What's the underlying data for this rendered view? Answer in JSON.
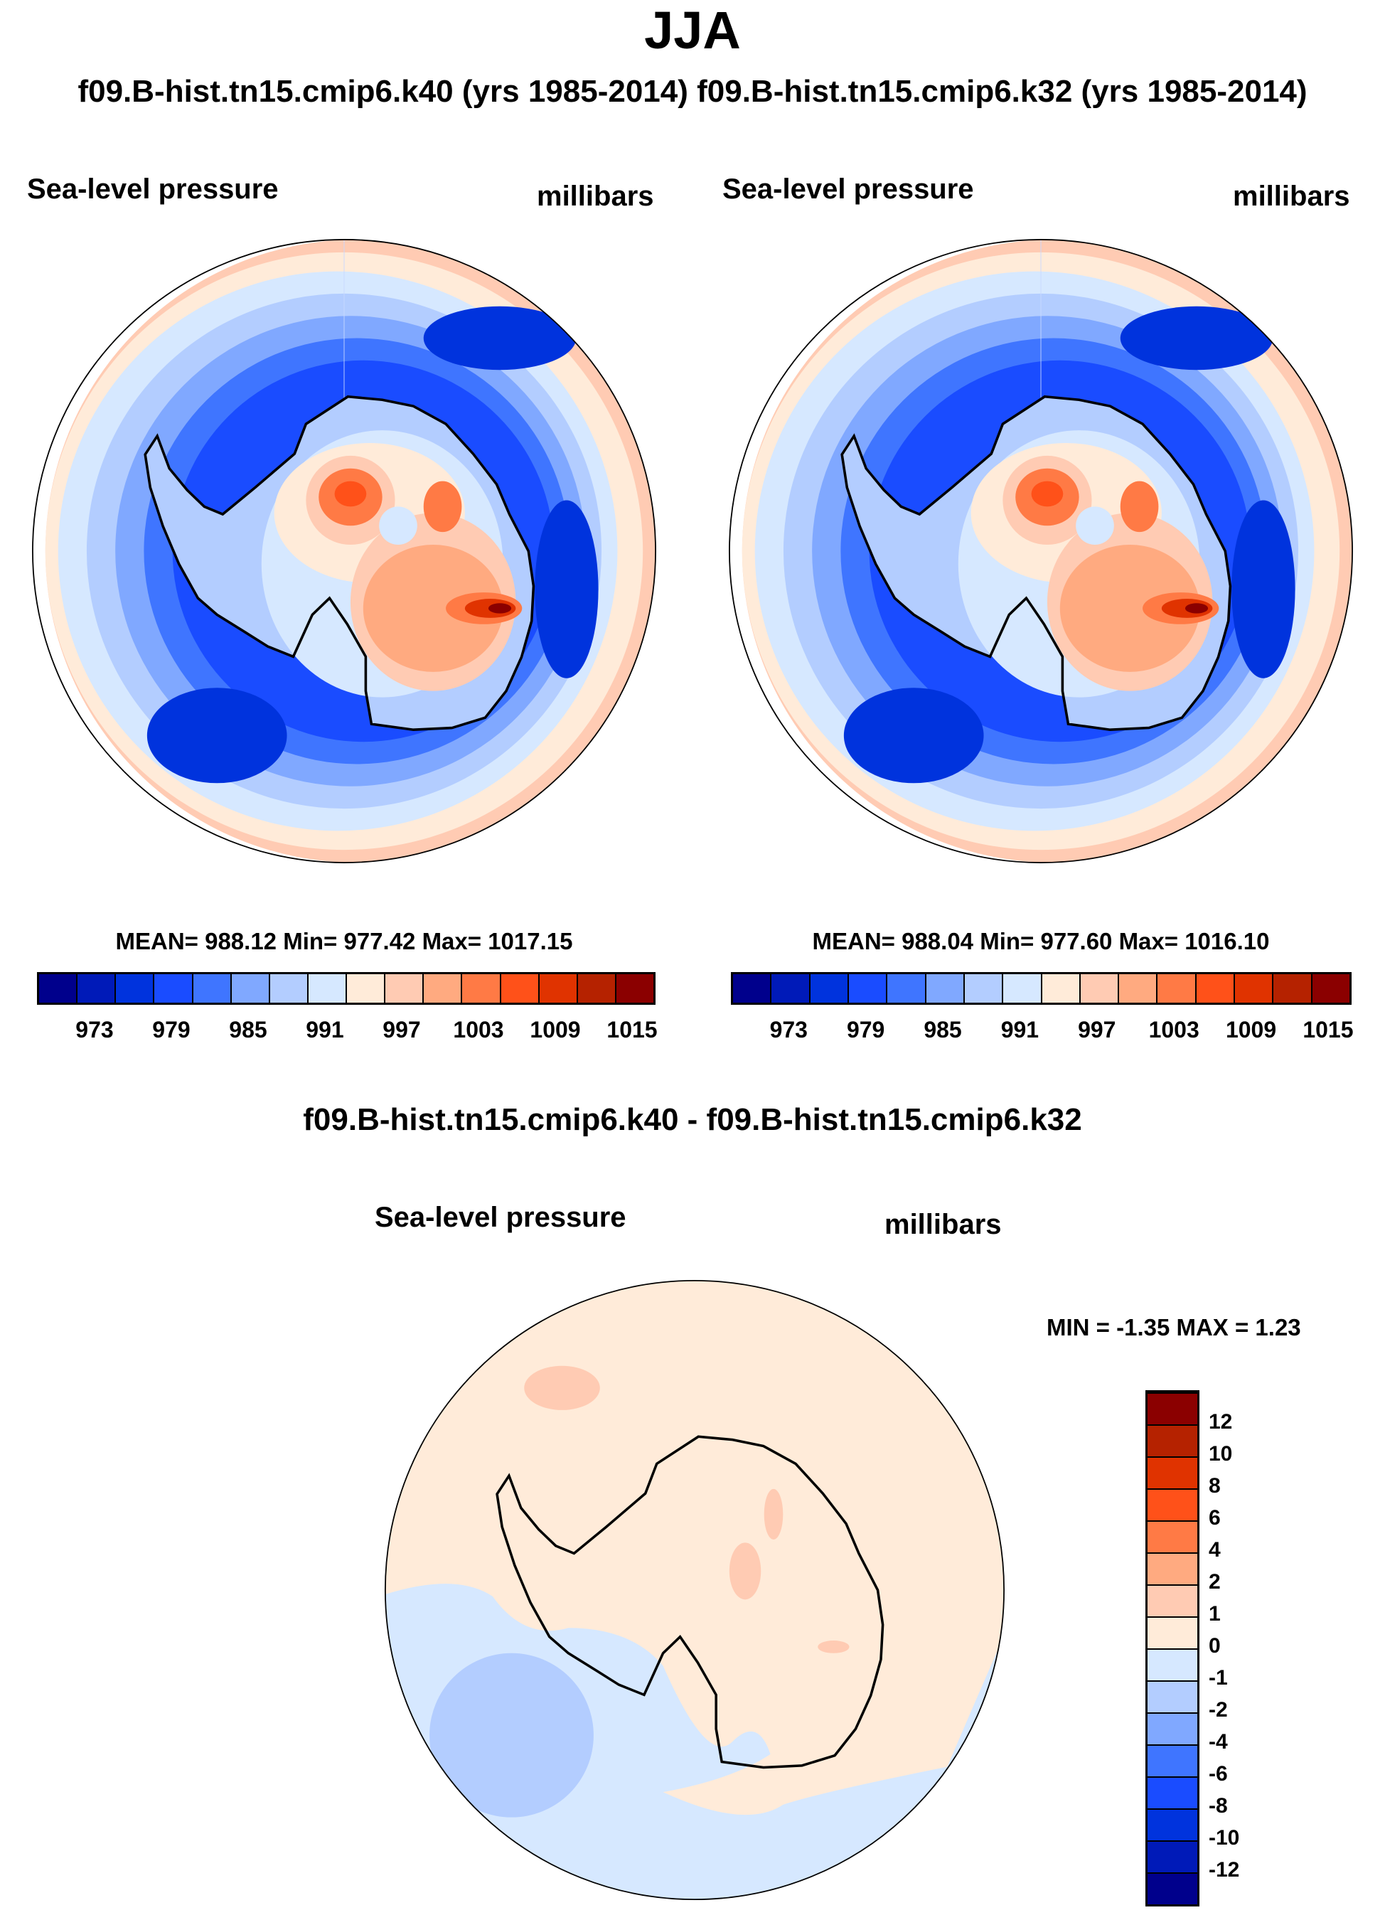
{
  "title": "JJA",
  "subtitle": "f09.B-hist.tn15.cmip6.k40 (yrs 1985-2014) f09.B-hist.tn15.cmip6.k32 (yrs 1985-2014)",
  "chart_data": [
    {
      "type": "heatmap",
      "panel": "left",
      "case": "f09.B-hist.tn15.cmip6.k40",
      "variable": "Sea-level pressure",
      "units": "millibars",
      "stats": "MEAN= 988.12  Min= 977.42  Max= 1017.15",
      "levels": [
        "973",
        "979",
        "985",
        "991",
        "997",
        "1003",
        "1009",
        "1015"
      ]
    },
    {
      "type": "heatmap",
      "panel": "right",
      "case": "f09.B-hist.tn15.cmip6.k32",
      "variable": "Sea-level pressure",
      "units": "millibars",
      "stats": "MEAN= 988.04  Min= 977.60  Max= 1016.10",
      "levels": [
        "973",
        "979",
        "985",
        "991",
        "997",
        "1003",
        "1009",
        "1015"
      ]
    },
    {
      "type": "heatmap",
      "panel": "difference",
      "title": "f09.B-hist.tn15.cmip6.k40 - f09.B-hist.tn15.cmip6.k32",
      "variable": "Sea-level pressure",
      "units": "millibars",
      "stats": "MIN =  -1.35 MAX =   1.23",
      "levels": [
        "-12",
        "-10",
        "-8",
        "-6",
        "-4",
        "-2",
        "-1",
        "0",
        "1",
        "2",
        "4",
        "6",
        "8",
        "10",
        "12"
      ]
    }
  ],
  "colors": [
    "#00008c",
    "#001ab8",
    "#0033dd",
    "#1a4cff",
    "#3f75ff",
    "#80a8ff",
    "#b3cdff",
    "#d6e8ff",
    "#ffebd9",
    "#ffcbb3",
    "#ffaa80",
    "#ff7a45",
    "#ff5119",
    "#e03300",
    "#b52200",
    "#8b0000"
  ]
}
